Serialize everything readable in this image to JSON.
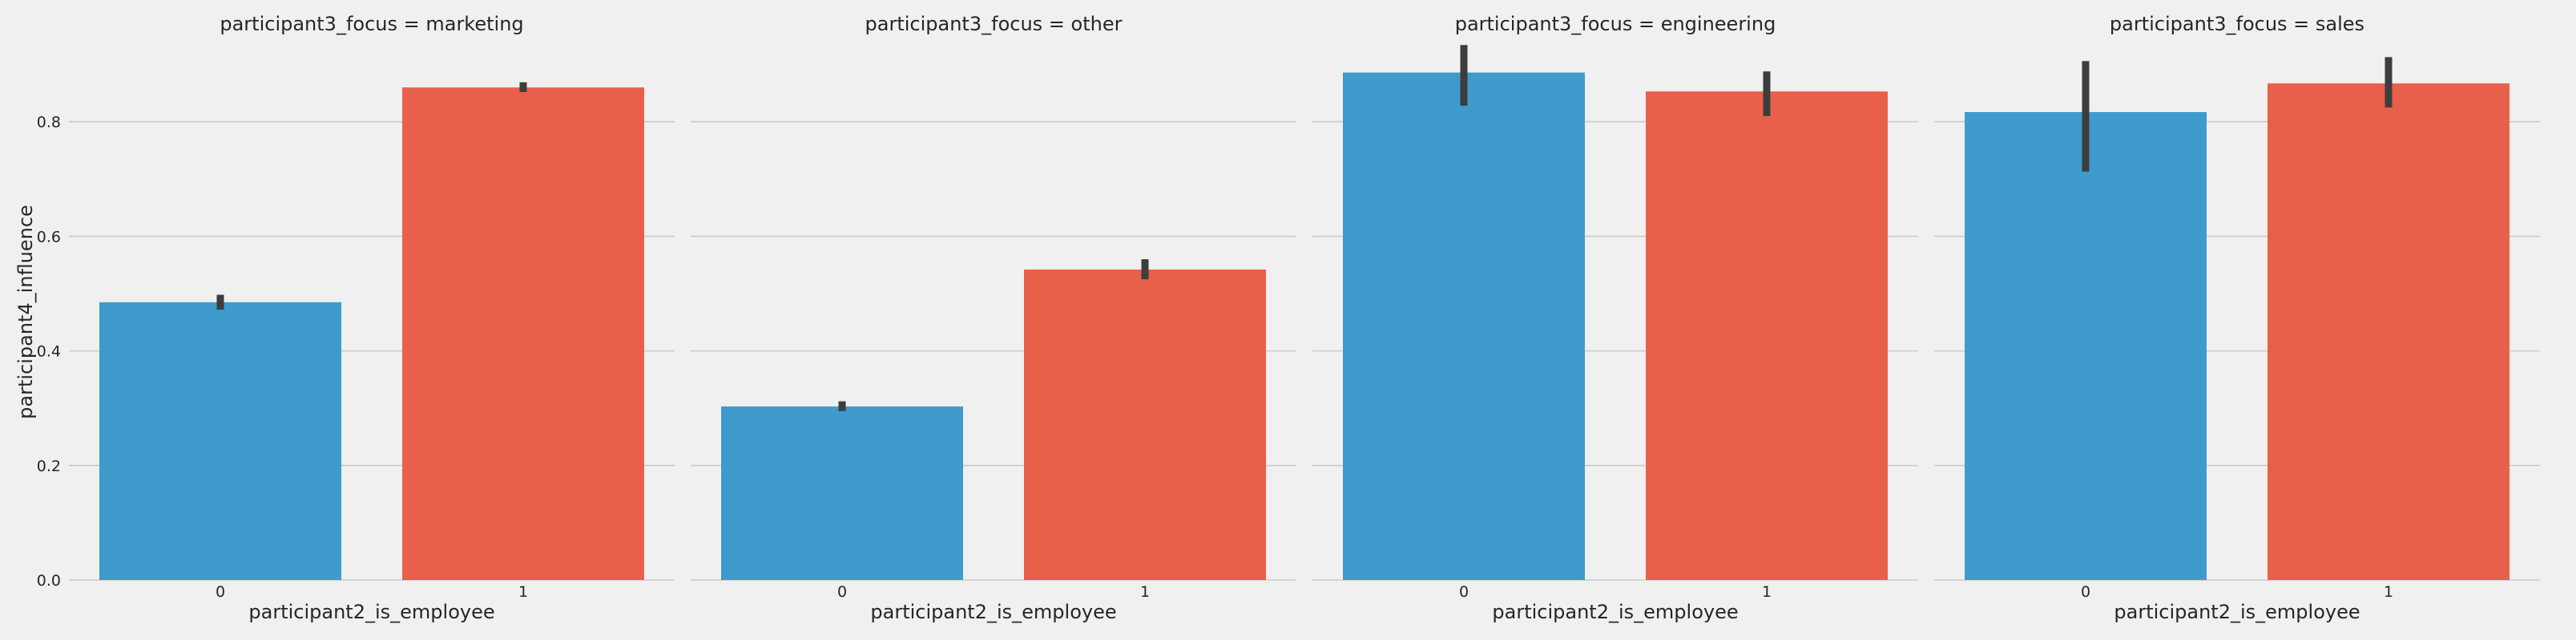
{
  "chart_data": {
    "type": "bar",
    "facet_variable": "participant3_focus",
    "xlabel": "participant2_is_employee",
    "ylabel": "participant4_influence",
    "categories": [
      "0",
      "1"
    ],
    "ylim": [
      0,
      0.94
    ],
    "yticks": [
      "0.0",
      "0.2",
      "0.4",
      "0.6",
      "0.8"
    ],
    "ytick_values": [
      0,
      0.2,
      0.4,
      0.6,
      0.8
    ],
    "grid": true,
    "colors": [
      "#3f9bcb",
      "#e8604a"
    ],
    "facets": [
      {
        "title": "participant3_focus = marketing",
        "values": [
          0.485,
          0.86
        ],
        "ci": [
          [
            0.472,
            0.498
          ],
          [
            0.852,
            0.869
          ]
        ]
      },
      {
        "title": "participant3_focus = other",
        "values": [
          0.303,
          0.542
        ],
        "ci": [
          [
            0.295,
            0.312
          ],
          [
            0.525,
            0.56
          ]
        ]
      },
      {
        "title": "participant3_focus = engineering",
        "values": [
          0.886,
          0.853
        ],
        "ci": [
          [
            0.828,
            0.934
          ],
          [
            0.81,
            0.888
          ]
        ]
      },
      {
        "title": "participant3_focus = sales",
        "values": [
          0.817,
          0.867
        ],
        "ci": [
          [
            0.713,
            0.906
          ],
          [
            0.825,
            0.913
          ]
        ]
      }
    ]
  }
}
